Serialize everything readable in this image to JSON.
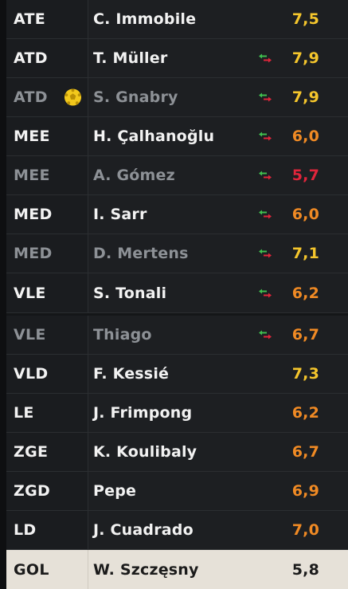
{
  "players": [
    {
      "position": "ATE",
      "name": "C. Immobile",
      "rating": "7,5",
      "rating_color": "#f5c62c",
      "dim": false,
      "sub": false,
      "ball": false
    },
    {
      "position": "ATD",
      "name": "T. Müller",
      "rating": "7,9",
      "rating_color": "#f5c62c",
      "dim": false,
      "sub": true,
      "ball": false
    },
    {
      "position": "ATD",
      "name": "S. Gnabry",
      "rating": "7,9",
      "rating_color": "#f5c62c",
      "dim": true,
      "sub": true,
      "ball": true
    },
    {
      "position": "MEE",
      "name": "H. Çalhanoğlu",
      "rating": "6,0",
      "rating_color": "#f08a24",
      "dim": false,
      "sub": true,
      "ball": false
    },
    {
      "position": "MEE",
      "name": "A. Gómez",
      "rating": "5,7",
      "rating_color": "#e0253b",
      "dim": true,
      "sub": true,
      "ball": false
    },
    {
      "position": "MED",
      "name": "I. Sarr",
      "rating": "6,0",
      "rating_color": "#f08a24",
      "dim": false,
      "sub": true,
      "ball": false
    },
    {
      "position": "MED",
      "name": "D. Mertens",
      "rating": "7,1",
      "rating_color": "#f5c62c",
      "dim": true,
      "sub": true,
      "ball": false
    },
    {
      "position": "VLE",
      "name": "S. Tonali",
      "rating": "6,2",
      "rating_color": "#f08a24",
      "dim": false,
      "sub": true,
      "ball": false
    },
    {
      "position": "VLE",
      "name": "Thiago",
      "rating": "6,7",
      "rating_color": "#f08a24",
      "dim": true,
      "sub": true,
      "ball": false
    },
    {
      "position": "VLD",
      "name": "F. Kessié",
      "rating": "7,3",
      "rating_color": "#f5c62c",
      "dim": false,
      "sub": false,
      "ball": false
    },
    {
      "position": "LE",
      "name": "J. Frimpong",
      "rating": "6,2",
      "rating_color": "#f08a24",
      "dim": false,
      "sub": false,
      "ball": false
    },
    {
      "position": "ZGE",
      "name": "K. Koulibaly",
      "rating": "6,7",
      "rating_color": "#f08a24",
      "dim": false,
      "sub": false,
      "ball": false
    },
    {
      "position": "ZGD",
      "name": "Pepe",
      "rating": "6,9",
      "rating_color": "#f08a24",
      "dim": false,
      "sub": false,
      "ball": false
    },
    {
      "position": "LD",
      "name": "J. Cuadrado",
      "rating": "7,0",
      "rating_color": "#f08a24",
      "dim": false,
      "sub": false,
      "ball": false
    },
    {
      "position": "GOL",
      "name": "W. Szczęsny",
      "rating": "5,8",
      "rating_color": "#1b1b1b",
      "dim": false,
      "sub": false,
      "ball": false,
      "selected": true
    }
  ],
  "icons": {
    "substitution": "substitution-arrows-icon",
    "ball": "soccer-ball-icon"
  },
  "colors": {
    "sub_in": "#3fbf4f",
    "sub_out": "#e0253b",
    "ball": "#f2c81c"
  }
}
